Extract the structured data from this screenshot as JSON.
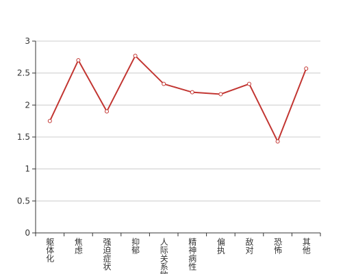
{
  "chart_data": {
    "type": "line",
    "categories": [
      "躯体化",
      "焦虑",
      "强迫症状",
      "抑郁",
      "人际关系敏感",
      "精神病性",
      "偏执",
      "敌对",
      "恐怖",
      "其他"
    ],
    "values": [
      1.75,
      2.7,
      1.9,
      2.77,
      2.33,
      2.2,
      2.17,
      2.33,
      1.43,
      2.57
    ],
    "color": "#c23531",
    "ylim": [
      0,
      3
    ],
    "yticks": [
      0,
      0.5,
      1,
      1.5,
      2,
      2.5,
      3
    ],
    "grid": true
  }
}
